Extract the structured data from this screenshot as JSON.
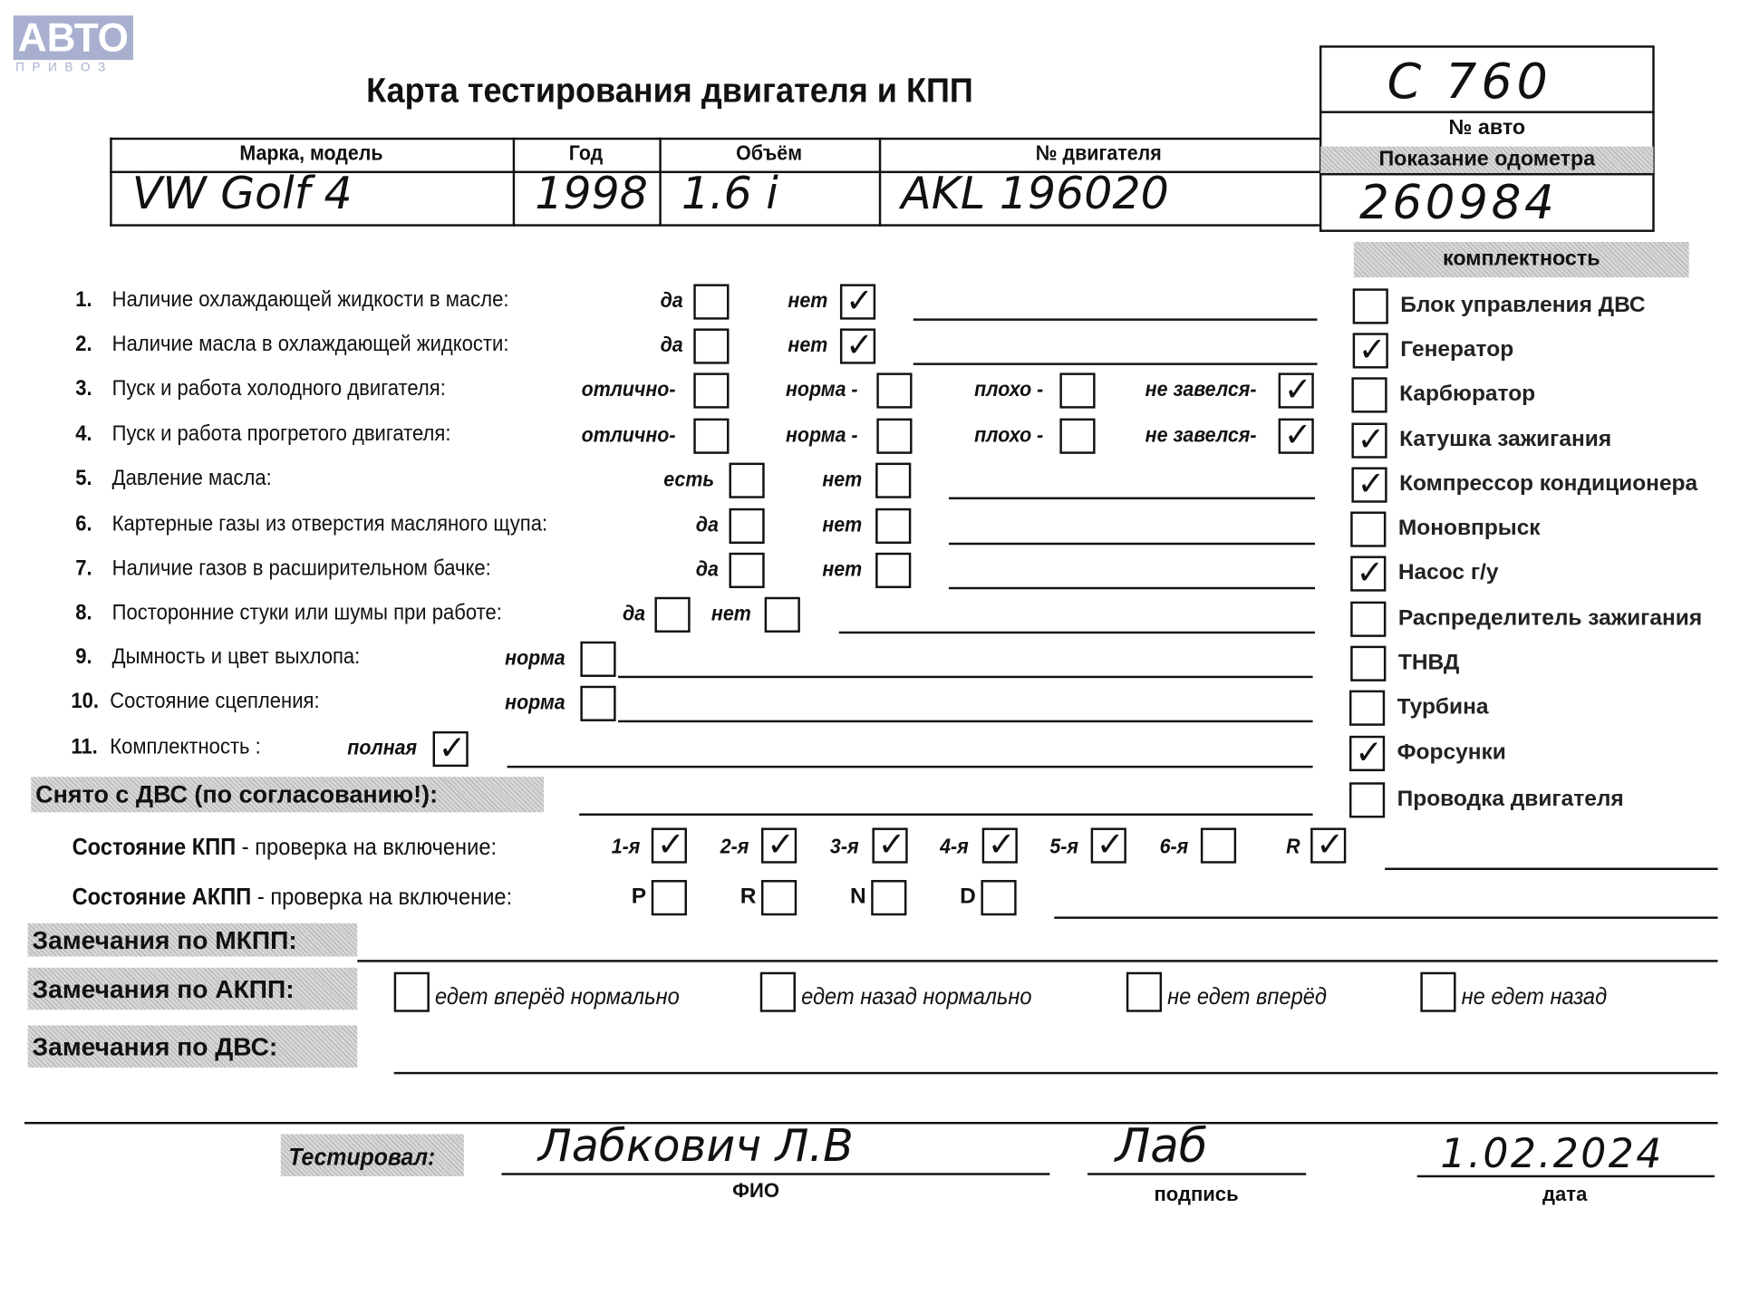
{
  "logo": {
    "brand": "АВТО",
    "sub": "П Р И В О З",
    "color": "#a9b0cf"
  },
  "title": "Карта тестирования двигателя  и КПП",
  "car_box": {
    "plate": "C 760",
    "plate_label": "№ авто",
    "odometer_label": "Показание одометра",
    "odometer": "260984"
  },
  "vehicle_table": {
    "headers": [
      "Марка, модель",
      "Год",
      "Объём",
      "№ двигателя"
    ],
    "values": [
      "VW   Golf 4",
      "1998",
      "1.6 i",
      "AKL  196020"
    ]
  },
  "checks": [
    {
      "num": "1.",
      "label": "Наличие охлаждающей жидкости в масле:",
      "options": [
        {
          "label": "да",
          "checked": false
        },
        {
          "label": "нет",
          "checked": true
        }
      ]
    },
    {
      "num": "2.",
      "label": "Наличие масла в охлаждающей жидкости:",
      "options": [
        {
          "label": "да",
          "checked": false
        },
        {
          "label": "нет",
          "checked": true
        }
      ]
    },
    {
      "num": "3.",
      "label": "Пуск и работа холодного двигателя:",
      "options": [
        {
          "label": "отлично-",
          "checked": false
        },
        {
          "label": "норма -",
          "checked": false
        },
        {
          "label": "плохо -",
          "checked": false
        },
        {
          "label": "не завелся-",
          "checked": true
        }
      ]
    },
    {
      "num": "4.",
      "label": "Пуск и работа прогретого двигателя:",
      "options": [
        {
          "label": "отлично-",
          "checked": false
        },
        {
          "label": "норма -",
          "checked": false
        },
        {
          "label": "плохо -",
          "checked": false
        },
        {
          "label": "не завелся-",
          "checked": true
        }
      ]
    },
    {
      "num": "5.",
      "label": "Давление масла:",
      "options": [
        {
          "label": "есть",
          "checked": false
        },
        {
          "label": "нет",
          "checked": false
        }
      ]
    },
    {
      "num": "6.",
      "label": "Картерные газы из отверстия масляного щупа:",
      "options": [
        {
          "label": "да",
          "checked": false
        },
        {
          "label": "нет",
          "checked": false
        }
      ]
    },
    {
      "num": "7.",
      "label": "Наличие газов в расширительном бачке:",
      "options": [
        {
          "label": "да",
          "checked": false
        },
        {
          "label": "нет",
          "checked": false
        }
      ]
    },
    {
      "num": "8.",
      "label": "Посторонние стуки или шумы при работе:",
      "options": [
        {
          "label": "да",
          "checked": false
        },
        {
          "label": "нет",
          "checked": false
        }
      ]
    },
    {
      "num": "9.",
      "label": "Дымность и цвет выхлопа:",
      "options": [
        {
          "label": "норма",
          "checked": false
        }
      ]
    },
    {
      "num": "10.",
      "label": "Состояние сцепления:",
      "options": [
        {
          "label": "норма",
          "checked": false
        }
      ]
    },
    {
      "num": "11.",
      "label": "Комплектность :",
      "options": [
        {
          "label": "полная",
          "checked": true
        }
      ]
    }
  ],
  "removed_banner": "Снято с ДВС (по согласованию!):",
  "completeness": {
    "title": "комплектность",
    "items": [
      {
        "label": "Блок управления ДВС",
        "checked": false
      },
      {
        "label": "Генератор",
        "checked": true
      },
      {
        "label": "Карбюратор",
        "checked": false
      },
      {
        "label": "Катушка зажигания",
        "checked": true
      },
      {
        "label": "Компрессор кондиционера",
        "checked": true
      },
      {
        "label": "Моновпрыск",
        "checked": false
      },
      {
        "label": "Насос г/у",
        "checked": true
      },
      {
        "label": "Распределитель зажигания",
        "checked": false
      },
      {
        "label": "ТНВД",
        "checked": false
      },
      {
        "label": "Турбина",
        "checked": false
      },
      {
        "label": "Форсунки",
        "checked": true
      },
      {
        "label": "Проводка двигателя",
        "checked": false
      }
    ]
  },
  "manual_gearbox": {
    "label_bold": "Состояние КПП",
    "label_rest": " - проверка на включение:",
    "gears": [
      {
        "label": "1-я",
        "checked": true
      },
      {
        "label": "2-я",
        "checked": true
      },
      {
        "label": "3-я",
        "checked": true
      },
      {
        "label": "4-я",
        "checked": true
      },
      {
        "label": "5-я",
        "checked": true
      },
      {
        "label": "6-я",
        "checked": false
      },
      {
        "label": "R",
        "checked": true
      }
    ]
  },
  "auto_gearbox": {
    "label_bold": "Состояние АКПП",
    "label_rest": " - проверка на включение:",
    "positions": [
      {
        "label": "P",
        "checked": false
      },
      {
        "label": "R",
        "checked": false
      },
      {
        "label": "N",
        "checked": false
      },
      {
        "label": "D",
        "checked": false
      }
    ]
  },
  "remarks": {
    "manual": "Замечания по МКПП:",
    "auto": "Замечания по АКПП:",
    "auto_options": [
      {
        "label": "едет вперёд нормально",
        "checked": false
      },
      {
        "label": "едет назад нормально",
        "checked": false
      },
      {
        "label": "не едет вперёд",
        "checked": false
      },
      {
        "label": "не едет назад",
        "checked": false
      }
    ],
    "engine": "Замечания по ДВС:"
  },
  "signoff": {
    "tested_by": "Тестировал:",
    "name": "Лабкович  Л.В",
    "name_caption": "ФИО",
    "signature": "Лаб",
    "signature_caption": "подпись",
    "date": "1.02.2024",
    "date_caption": "дата"
  }
}
